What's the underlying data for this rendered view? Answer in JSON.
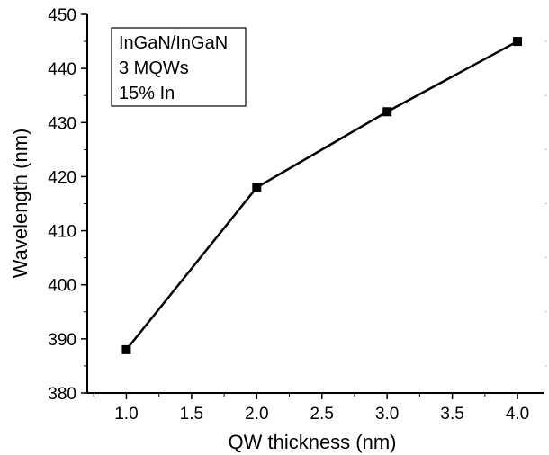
{
  "chart_data": {
    "type": "line",
    "x": [
      1.0,
      2.0,
      3.0,
      4.0
    ],
    "series": [
      {
        "values": [
          388,
          418,
          432,
          445
        ]
      }
    ],
    "xlabel": "QW thickness (nm)",
    "ylabel": "Wavelength (nm)",
    "xlim": [
      0.7,
      4.2
    ],
    "ylim": [
      380,
      450
    ],
    "xticks": [
      1.0,
      1.5,
      2.0,
      2.5,
      3.0,
      3.5,
      4.0
    ],
    "xtick_labels": [
      "1.0",
      "1.5",
      "2.0",
      "2.5",
      "3.0",
      "3.5",
      "4.0"
    ],
    "yticks": [
      380,
      390,
      400,
      410,
      420,
      430,
      440,
      450
    ],
    "ytick_labels": [
      "380",
      "390",
      "400",
      "410",
      "420",
      "430",
      "440",
      "450"
    ],
    "annotation": [
      "InGaN/InGaN",
      "3 MQWs",
      "15% In"
    ],
    "grid": false,
    "marker": "square",
    "colors": {
      "line": "#000000",
      "marker": "#000000",
      "background": "#ffffff"
    }
  }
}
